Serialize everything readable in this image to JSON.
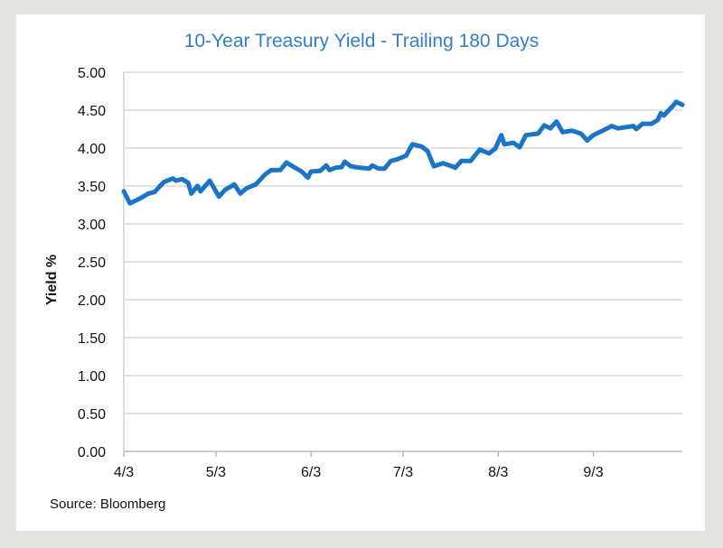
{
  "chart_data": {
    "type": "line",
    "title": "10-Year Treasury Yield - Trailing 180 Days",
    "xlabel": "",
    "ylabel": "Yield %",
    "source": "Source: Bloomberg",
    "ylim": [
      0,
      5
    ],
    "xlim_days": [
      0,
      182
    ],
    "grid": "horizontal",
    "y_ticks": [
      "0.00",
      "0.50",
      "1.00",
      "1.50",
      "2.00",
      "2.50",
      "3.00",
      "3.50",
      "4.00",
      "4.50",
      "5.00"
    ],
    "x_ticks": [
      {
        "label": "4/3",
        "day": 0
      },
      {
        "label": "5/3",
        "day": 30
      },
      {
        "label": "6/3",
        "day": 61
      },
      {
        "label": "7/3",
        "day": 91
      },
      {
        "label": "8/3",
        "day": 122
      },
      {
        "label": "9/3",
        "day": 153
      }
    ],
    "color": "#1a74c8",
    "series": [
      {
        "name": "10-Year Treasury Yield",
        "days": [
          0,
          2,
          5,
          8,
          10,
          13,
          16,
          17,
          19,
          21,
          22,
          24,
          25,
          28,
          31,
          33,
          36,
          38,
          40,
          43,
          46,
          48,
          51,
          53,
          55,
          58,
          60,
          61,
          64,
          66,
          67,
          69,
          71,
          72,
          74,
          77,
          80,
          81,
          83,
          85,
          87,
          89,
          92,
          94,
          97,
          99,
          101,
          104,
          107,
          108,
          110,
          113,
          114,
          116,
          119,
          121,
          123,
          124,
          127,
          129,
          131,
          135,
          137,
          139,
          141,
          143,
          146,
          149,
          151,
          153,
          156,
          159,
          161,
          166,
          167,
          169,
          172,
          174,
          175,
          176,
          179,
          180,
          182
        ],
        "values": [
          3.43,
          3.27,
          3.33,
          3.4,
          3.42,
          3.55,
          3.6,
          3.57,
          3.59,
          3.54,
          3.4,
          3.5,
          3.43,
          3.57,
          3.36,
          3.45,
          3.52,
          3.4,
          3.47,
          3.52,
          3.65,
          3.71,
          3.71,
          3.81,
          3.76,
          3.69,
          3.61,
          3.69,
          3.7,
          3.77,
          3.71,
          3.74,
          3.75,
          3.82,
          3.76,
          3.74,
          3.73,
          3.77,
          3.73,
          3.73,
          3.83,
          3.85,
          3.9,
          4.05,
          4.02,
          3.96,
          3.76,
          3.8,
          3.76,
          3.74,
          3.83,
          3.83,
          3.88,
          3.98,
          3.93,
          3.99,
          4.17,
          4.05,
          4.07,
          4.01,
          4.17,
          4.19,
          4.3,
          4.26,
          4.35,
          4.21,
          4.23,
          4.19,
          4.1,
          4.17,
          4.23,
          4.29,
          4.26,
          4.29,
          4.25,
          4.32,
          4.32,
          4.37,
          4.46,
          4.43,
          4.56,
          4.61,
          4.57
        ]
      }
    ]
  }
}
